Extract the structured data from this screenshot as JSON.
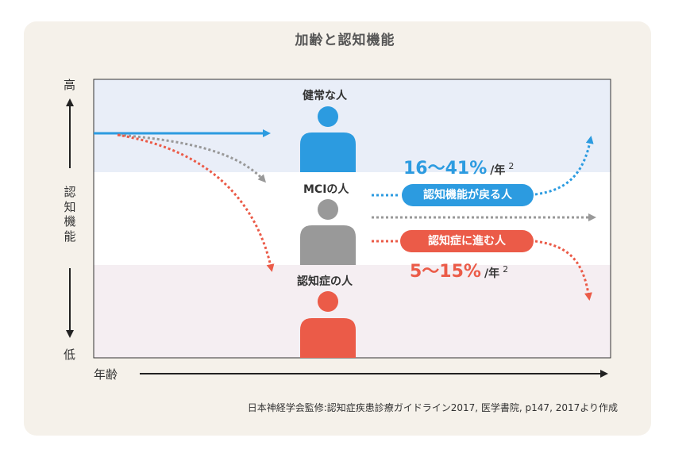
{
  "title": "加齢と認知機能",
  "axis": {
    "high": "高",
    "low": "低",
    "y_title": "認知機能",
    "x_title": "年齢"
  },
  "people": {
    "healthy": "健常な人",
    "mci": "MCIの人",
    "dementia": "認知症の人"
  },
  "outcomes": {
    "return_label": "認知機能が戻る人",
    "return_rate": "16〜41%",
    "progress_label": "認知症に進む人",
    "progress_rate": "5〜15%",
    "rate_unit": "/年",
    "citation_mark": "2"
  },
  "source": "日本神経学会監修:認知症疾患診療ガイドライン2017, 医学書院, p147, 2017より作成",
  "colors": {
    "blue": "#2c9be0",
    "gray": "#999999",
    "red": "#eb5b48",
    "band_top": "#e9eef8",
    "band_bottom": "#f5eef2"
  }
}
